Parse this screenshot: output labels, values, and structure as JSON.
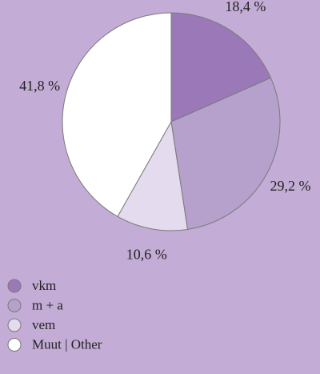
{
  "chart_data": {
    "type": "pie",
    "categories": [
      "vkm",
      "m + a",
      "vem",
      "Muut | Other"
    ],
    "values": [
      18.4,
      29.2,
      10.6,
      41.8
    ],
    "value_labels": [
      "18,4 %",
      "29,2 %",
      "10,6 %",
      "41,8 %"
    ],
    "colors": [
      "#9b78b8",
      "#b6a0cc",
      "#e4dbee",
      "#ffffff"
    ]
  }
}
